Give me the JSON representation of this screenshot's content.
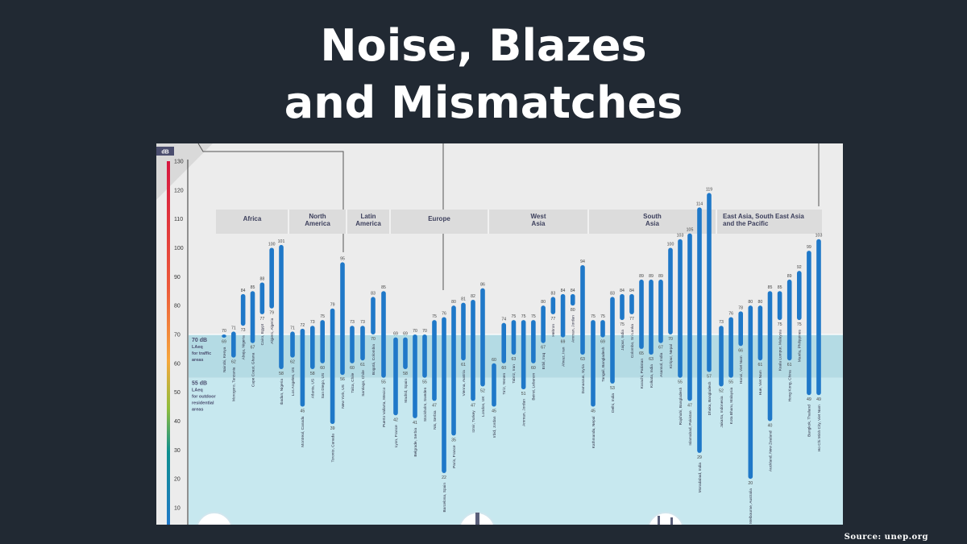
{
  "slide": {
    "title_line1": "Noise, Blazes",
    "title_line2": "and Mismatches",
    "source": "Source: unep.org"
  },
  "colors": {
    "background": "#212933",
    "panel": "#ececec",
    "band_residential": "#c7e8ef",
    "band_traffic": "#b4dbe4",
    "region_header": "#dcdcdc",
    "axis_label_bg": "#4a4d6e",
    "gradient_high": "#d6163f",
    "gradient_mid": "#f6a73c",
    "gradient_low": "#0e8f8f"
  },
  "chart_data": {
    "type": "range-bar",
    "unit_label": "dB",
    "y_ticks": [
      10,
      20,
      30,
      40,
      50,
      60,
      70,
      80,
      90,
      100,
      110,
      120,
      130
    ],
    "ylim": [
      0,
      130
    ],
    "guideline_traffic": {
      "value": 70,
      "label_lines": [
        "70 dB",
        "LAeq",
        "for traffic",
        "areas"
      ]
    },
    "guideline_residential": {
      "value": 55,
      "label_lines": [
        "55 dB",
        "LAeq",
        "for outdoor",
        "residential",
        "areas"
      ]
    },
    "regions": [
      {
        "name_lines": [
          "Africa"
        ],
        "cities": [
          {
            "name": "Nairobi, Kenya",
            "min": 69,
            "max": 70
          },
          {
            "name": "Morogoro, Tanzania",
            "min": 62,
            "max": 71
          },
          {
            "name": "Abuja, Nigeria",
            "min": 73,
            "max": 84
          },
          {
            "name": "Cape Coast, Ghana",
            "min": 67,
            "max": 85
          },
          {
            "name": "Cairo, Egypt",
            "min": 77,
            "max": 88
          },
          {
            "name": "Algiers, Algeria",
            "min": 79,
            "max": 100
          },
          {
            "name": "Ibadan, Nigeria",
            "min": 58,
            "max": 101
          }
        ]
      },
      {
        "name_lines": [
          "North",
          "America"
        ],
        "cities": [
          {
            "name": "Los Angeles, US",
            "min": 62,
            "max": 71
          },
          {
            "name": "Montreal, Canada",
            "min": 45,
            "max": 72
          },
          {
            "name": "Atlanta, US",
            "min": 58,
            "max": 73
          },
          {
            "name": "San Diego, US",
            "min": 60,
            "max": 75
          },
          {
            "name": "Toronto, Canada",
            "min": 39,
            "max": 79
          },
          {
            "name": "New York, US",
            "min": 56,
            "max": 95
          }
        ]
      },
      {
        "name_lines": [
          "Latin",
          "America"
        ],
        "cities": [
          {
            "name": "Talca, Chile",
            "min": 60,
            "max": 73
          },
          {
            "name": "Santiago, Chile",
            "min": 61,
            "max": 73
          },
          {
            "name": "Bogotá, Colombia",
            "min": 70,
            "max": 83
          },
          {
            "name": "Puerto Vallarta, Mexico",
            "min": 55,
            "max": 85
          }
        ]
      },
      {
        "name_lines": [
          "Europe"
        ],
        "cities": [
          {
            "name": "Lyon, France",
            "min": 42,
            "max": 69
          },
          {
            "name": "Madrid, Spain",
            "min": 58,
            "max": 69
          },
          {
            "name": "Belgrade, Serbia",
            "min": 41,
            "max": 70
          },
          {
            "name": "Stockholm, Sweden",
            "min": 55,
            "max": 70
          },
          {
            "name": "Nis, Serbia",
            "min": 47,
            "max": 75
          },
          {
            "name": "Barcelona, Spain",
            "min": 22,
            "max": 76
          },
          {
            "name": "Paris, France",
            "min": 35,
            "max": 80
          },
          {
            "name": "Vienna, Austria",
            "min": 61,
            "max": 81
          },
          {
            "name": "Izmir, Turkey",
            "min": 47,
            "max": 82
          },
          {
            "name": "London, UK",
            "min": 52,
            "max": 86
          }
        ]
      },
      {
        "name_lines": [
          "West",
          "Asia"
        ],
        "cities": [
          {
            "name": "Irbid, Jordan",
            "min": 45,
            "max": 60
          },
          {
            "name": "Ta'iz, Yemen",
            "min": 60,
            "max": 74
          },
          {
            "name": "Tabriz, Iran",
            "min": 63,
            "max": 75
          },
          {
            "name": "Amman, Jordan",
            "min": 51,
            "max": 75
          },
          {
            "name": "Beirut, Lebanon",
            "min": 60,
            "max": 75
          },
          {
            "name": "Erbil, Iraq",
            "min": 67,
            "max": 80
          },
          {
            "name": "Hebron",
            "min": 77,
            "max": 83
          },
          {
            "name": "Ahvaz, Iran",
            "min": 69,
            "max": 84
          },
          {
            "name": "Amman, Jordan",
            "min": 80,
            "max": 84
          },
          {
            "name": "Damascus, Syria",
            "min": 63,
            "max": 94
          }
        ]
      },
      {
        "name_lines": [
          "South",
          "Asia"
        ],
        "cities": [
          {
            "name": "Kathmandu, Nepal",
            "min": 45,
            "max": 75
          },
          {
            "name": "Tangail, Bangladesh",
            "min": 69,
            "max": 75
          },
          {
            "name": "Delhi, India",
            "min": 53,
            "max": 83
          },
          {
            "name": "Jaipur, India",
            "min": 75,
            "max": 84
          },
          {
            "name": "Colombo, Sri Lanka",
            "min": 77,
            "max": 84
          },
          {
            "name": "Karachi, Pakistan",
            "min": 65,
            "max": 89
          },
          {
            "name": "Kolkata, India",
            "min": 63,
            "max": 89
          },
          {
            "name": "Asansol, India",
            "min": 67,
            "max": 89
          },
          {
            "name": "Kirtipur, Nepal",
            "min": 70,
            "max": 100
          },
          {
            "name": "Rajshahi, Bangladesh",
            "min": 55,
            "max": 103
          },
          {
            "name": "Islamabad, Pakistan",
            "min": 47,
            "max": 105
          },
          {
            "name": "Moradabad, India",
            "min": 29,
            "max": 114
          },
          {
            "name": "Dhaka, Bangladesh",
            "min": 57,
            "max": 119
          }
        ]
      },
      {
        "name_lines": [
          "East Asia, South East Asia",
          "and the Pacific"
        ],
        "cities": [
          {
            "name": "Jakarta, Indonesia",
            "min": 52,
            "max": 73
          },
          {
            "name": "Kota Bharu, Malaysia",
            "min": 55,
            "max": 76
          },
          {
            "name": "Hanoi, Viet Nam",
            "min": 66,
            "max": 78
          },
          {
            "name": "Melbourne, Australia",
            "min": 20,
            "max": 80
          },
          {
            "name": "Hue, Viet Nam",
            "min": 61,
            "max": 80
          },
          {
            "name": "Auckland, New Zealand",
            "min": 40,
            "max": 85
          },
          {
            "name": "Kuala Lumpur, Malaysia",
            "min": 75,
            "max": 85
          },
          {
            "name": "Hong Kong, China",
            "min": 61,
            "max": 89
          },
          {
            "name": "Manila, Philippines",
            "min": 75,
            "max": 92
          },
          {
            "name": "Bangkok, Thailand",
            "min": 49,
            "max": 99
          },
          {
            "name": "Ho Chi Minh City, Viet Nam",
            "min": 49,
            "max": 103
          }
        ]
      }
    ]
  }
}
